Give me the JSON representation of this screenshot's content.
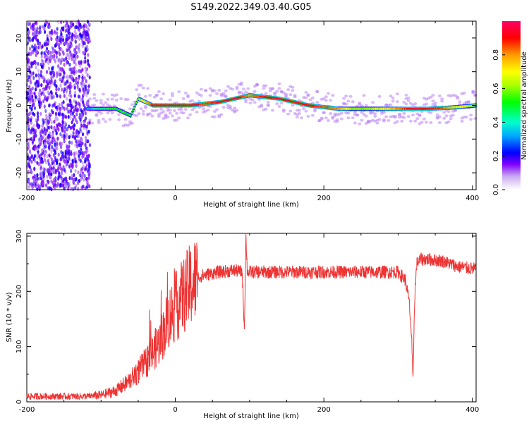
{
  "title": "S149.2022.349.03.40.G05",
  "colors": {
    "snr_line": "#ee3333",
    "axis": "#000000",
    "colorscale": [
      "#ffffff",
      "#c8a8f0",
      "#7f00ff",
      "#0000ff",
      "#00aaff",
      "#00ffcc",
      "#00ff00",
      "#aaff00",
      "#ffff00",
      "#ff9900",
      "#ff0000",
      "#ff0066"
    ]
  },
  "chart_data": [
    {
      "type": "heatmap",
      "title": "S149.2022.349.03.40.G05",
      "xlabel": "Height of straight line (km)",
      "ylabel": "Frequency (Hz)",
      "xlim": [
        -200,
        405
      ],
      "ylim": [
        -25,
        25
      ],
      "x_ticks": [
        "-200",
        "0",
        "200",
        "400"
      ],
      "y_ticks": [
        "-20",
        "-10",
        "0",
        "10",
        "20"
      ],
      "colorbar": {
        "label": "Normalized spectral amplitude",
        "range": [
          0,
          1
        ],
        "ticks": [
          "0.0",
          "0.2",
          "0.4",
          "0.6",
          "0.8"
        ]
      },
      "ridge": {
        "x": [
          -200,
          -150,
          -120,
          -100,
          -80,
          -70,
          -60,
          -50,
          -30,
          -10,
          0,
          20,
          40,
          60,
          80,
          100,
          120,
          140,
          160,
          180,
          200,
          220,
          240,
          260,
          280,
          300,
          320,
          340,
          360,
          380,
          405
        ],
        "frequency": [
          0,
          0,
          -1,
          -1,
          -1,
          -2,
          -3,
          2,
          0,
          0,
          0,
          0,
          0.5,
          1,
          2,
          3,
          2.5,
          2,
          1,
          0,
          -0.5,
          -1,
          -1,
          -1,
          -1,
          -1,
          -1,
          -1,
          -0.8,
          -0.5,
          0
        ],
        "amplitude": [
          0.2,
          0.2,
          0.3,
          0.45,
          0.5,
          0.55,
          0.5,
          0.6,
          0.9,
          0.95,
          0.9,
          0.95,
          0.85,
          0.9,
          0.95,
          0.8,
          0.9,
          0.95,
          0.9,
          0.9,
          0.85,
          0.8,
          0.6,
          0.6,
          0.7,
          0.8,
          0.95,
          0.9,
          0.85,
          0.7,
          0.6
        ]
      }
    },
    {
      "type": "line",
      "xlabel": "Height of straight line (km)",
      "ylabel": "SNR (10 * v/v)",
      "xlim": [
        -200,
        405
      ],
      "ylim": [
        0,
        305
      ],
      "x_ticks": [
        "-200",
        "0",
        "200",
        "400"
      ],
      "y_ticks": [
        "0",
        "100",
        "200",
        "300"
      ],
      "series": [
        {
          "x": [
            -200,
            -160,
            -120,
            -100,
            -80,
            -60,
            -40,
            -20,
            -10,
            0,
            10,
            20,
            30,
            40,
            60,
            80,
            90,
            93,
            95,
            97,
            100,
            120,
            150,
            180,
            200,
            250,
            300,
            310,
            315,
            318,
            320,
            322,
            325,
            330,
            340,
            360,
            380,
            405
          ],
          "values": [
            10,
            10,
            10,
            12,
            20,
            40,
            70,
            110,
            150,
            170,
            190,
            210,
            225,
            230,
            235,
            238,
            235,
            130,
            300,
            235,
            235,
            235,
            235,
            235,
            235,
            235,
            235,
            220,
            180,
            120,
            30,
            180,
            250,
            258,
            258,
            255,
            245,
            240
          ]
        }
      ]
    }
  ]
}
